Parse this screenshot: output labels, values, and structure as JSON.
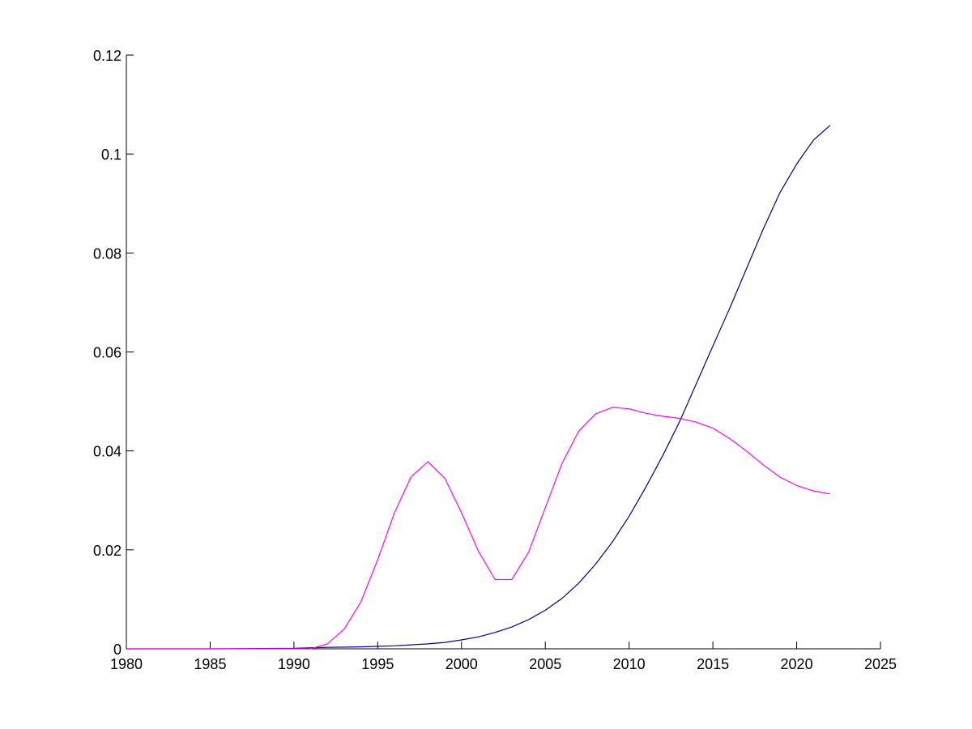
{
  "chart_data": {
    "type": "line",
    "title": "",
    "xlabel": "",
    "ylabel": "",
    "xlim": [
      1980,
      2025
    ],
    "ylim": [
      0,
      0.12
    ],
    "xticks": [
      1980,
      1985,
      1990,
      1995,
      2000,
      2005,
      2010,
      2015,
      2020,
      2025
    ],
    "yticks": [
      0,
      0.02,
      0.04,
      0.06,
      0.08,
      0.1,
      0.12
    ],
    "xtick_labels": [
      "1980",
      "1985",
      "1990",
      "1995",
      "2000",
      "2005",
      "2010",
      "2015",
      "2020",
      "2025"
    ],
    "ytick_labels": [
      "0",
      "0.02",
      "0.04",
      "0.06",
      "0.08",
      "0.1",
      "0.12"
    ],
    "grid": false,
    "box": false,
    "series": [
      {
        "color": "#00008b",
        "x": [
          1980,
          1985,
          1990,
          1992,
          1994,
          1996,
          1997,
          1998,
          1999,
          2000,
          2001,
          2002,
          2003,
          2004,
          2005,
          2006,
          2007,
          2008,
          2009,
          2010,
          2011,
          2012,
          2013,
          2014,
          2015,
          2016,
          2017,
          2018,
          2019,
          2020,
          2021,
          2022
        ],
        "y": [
          0,
          0,
          0.0001,
          0.0003,
          0.0004,
          0.0006,
          0.0008,
          0.001,
          0.0013,
          0.0018,
          0.0024,
          0.0033,
          0.0044,
          0.0059,
          0.0078,
          0.0102,
          0.0133,
          0.0171,
          0.0216,
          0.0268,
          0.0327,
          0.039,
          0.0458,
          0.0535,
          0.0612,
          0.0688,
          0.0768,
          0.0848,
          0.0922,
          0.098,
          0.1028,
          0.1058
        ]
      },
      {
        "color": "#ff00ff",
        "x": [
          1980,
          1985,
          1990,
          1991,
          1992,
          1993,
          1994,
          1995,
          1996,
          1997,
          1998,
          1999,
          2000,
          2001,
          2002,
          2003,
          2004,
          2005,
          2006,
          2007,
          2008,
          2009,
          2010,
          2011,
          2012,
          2013,
          2014,
          2015,
          2016,
          2017,
          2018,
          2019,
          2020,
          2021,
          2022
        ],
        "y": [
          0,
          0,
          0,
          0,
          0.001,
          0.004,
          0.0095,
          0.018,
          0.0275,
          0.0348,
          0.0378,
          0.0345,
          0.0275,
          0.0198,
          0.014,
          0.014,
          0.0195,
          0.0285,
          0.0375,
          0.044,
          0.0475,
          0.0488,
          0.0485,
          0.0476,
          0.047,
          0.0466,
          0.0458,
          0.0446,
          0.0425,
          0.04,
          0.0372,
          0.0347,
          0.033,
          0.0319,
          0.0313
        ]
      }
    ]
  }
}
